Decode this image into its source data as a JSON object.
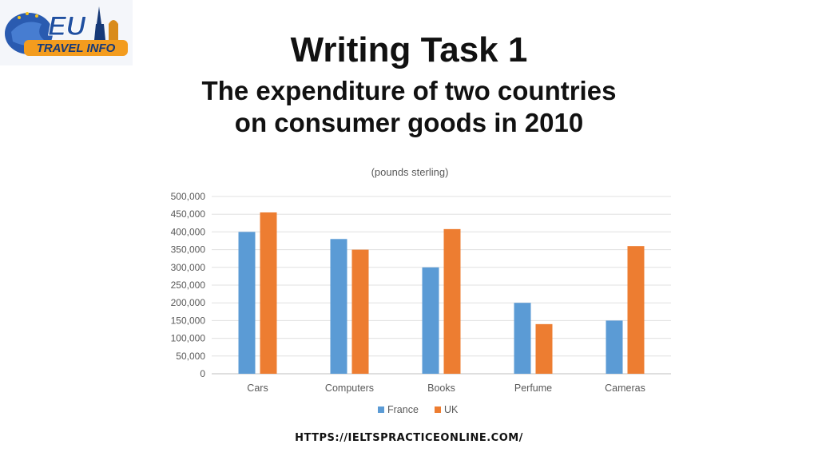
{
  "logo": {
    "top_text": "EU",
    "bottom_text": "TRAVEL INFO",
    "colors": {
      "blue": "#1f4fa0",
      "orange": "#f39c1e",
      "navy": "#173a78"
    }
  },
  "header": {
    "title": "Writing Task 1",
    "subtitle_line1": "The expenditure of two countries",
    "subtitle_line2": "on consumer goods in 2010"
  },
  "chart_data": {
    "type": "bar",
    "title": "(pounds sterling)",
    "xlabel": "",
    "ylabel": "",
    "categories": [
      "Cars",
      "Computers",
      "Books",
      "Perfume",
      "Cameras"
    ],
    "series": [
      {
        "name": "France",
        "color": "#5b9bd5",
        "values": [
          400000,
          380000,
          300000,
          200000,
          150000
        ]
      },
      {
        "name": "UK",
        "color": "#ed7d31",
        "values": [
          455000,
          350000,
          408000,
          140000,
          360000
        ]
      }
    ],
    "ylim": [
      0,
      500000
    ],
    "yticks": [
      "0",
      "50,000",
      "100,000",
      "150,000",
      "200,000",
      "250,000",
      "300,000",
      "350,000",
      "400,000",
      "450,000",
      "500,000"
    ],
    "grid": true,
    "legend_position": "bottom"
  },
  "footer": {
    "source_url": "HTTPS://IELTSPRACTICEONLINE.COM/"
  }
}
